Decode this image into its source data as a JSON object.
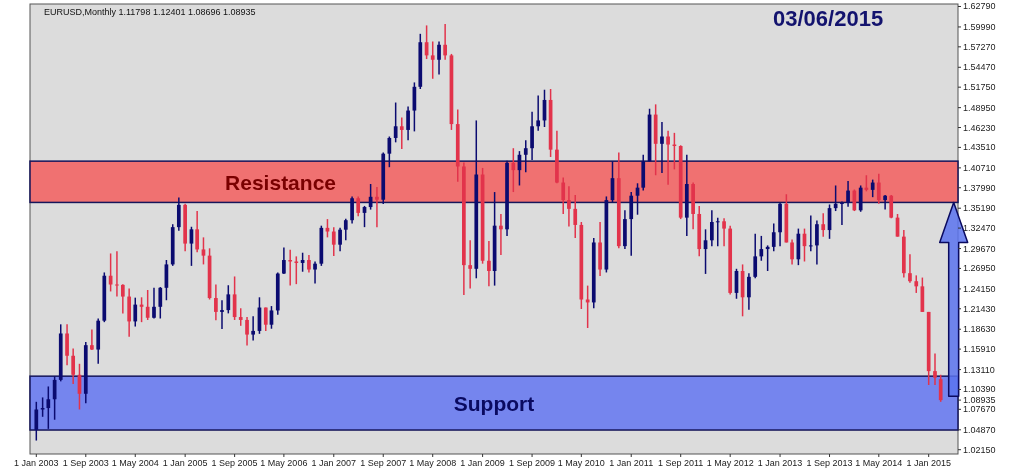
{
  "chart_data": {
    "type": "candlestick",
    "title": "EURUSD,Monthly  1.11798 1.12401 1.08696 1.08935",
    "subtitle": "03/06/2015",
    "x": [
      "2003-01",
      "2003-02",
      "2003-03",
      "2003-04",
      "2003-05",
      "2003-06",
      "2003-07",
      "2003-08",
      "2003-09",
      "2003-10",
      "2003-11",
      "2003-12",
      "2004-01",
      "2004-02",
      "2004-03",
      "2004-04",
      "2004-05",
      "2004-06",
      "2004-07",
      "2004-08",
      "2004-09",
      "2004-10",
      "2004-11",
      "2004-12",
      "2005-01",
      "2005-02",
      "2005-03",
      "2005-04",
      "2005-05",
      "2005-06",
      "2005-07",
      "2005-08",
      "2005-09",
      "2005-10",
      "2005-11",
      "2005-12",
      "2006-01",
      "2006-02",
      "2006-03",
      "2006-04",
      "2006-05",
      "2006-06",
      "2006-07",
      "2006-08",
      "2006-09",
      "2006-10",
      "2006-11",
      "2006-12",
      "2007-01",
      "2007-02",
      "2007-03",
      "2007-04",
      "2007-05",
      "2007-06",
      "2007-07",
      "2007-08",
      "2007-09",
      "2007-10",
      "2007-11",
      "2007-12",
      "2008-01",
      "2008-02",
      "2008-03",
      "2008-04",
      "2008-05",
      "2008-06",
      "2008-07",
      "2008-08",
      "2008-09",
      "2008-10",
      "2008-11",
      "2008-12",
      "2009-01",
      "2009-02",
      "2009-03",
      "2009-04",
      "2009-05",
      "2009-06",
      "2009-07",
      "2009-08",
      "2009-09",
      "2009-10",
      "2009-11",
      "2009-12",
      "2010-01",
      "2010-02",
      "2010-03",
      "2010-04",
      "2010-05",
      "2010-06",
      "2010-07",
      "2010-08",
      "2010-09",
      "2010-10",
      "2010-11",
      "2010-12",
      "2011-01",
      "2011-02",
      "2011-03",
      "2011-04",
      "2011-05",
      "2011-06",
      "2011-07",
      "2011-08",
      "2011-09",
      "2011-10",
      "2011-11",
      "2011-12",
      "2012-01",
      "2012-02",
      "2012-03",
      "2012-04",
      "2012-05",
      "2012-06",
      "2012-07",
      "2012-08",
      "2012-09",
      "2012-10",
      "2012-11",
      "2012-12",
      "2013-01",
      "2013-02",
      "2013-03",
      "2013-04",
      "2013-05",
      "2013-06",
      "2013-07",
      "2013-08",
      "2013-09",
      "2013-10",
      "2013-11",
      "2013-12",
      "2014-01",
      "2014-02",
      "2014-03",
      "2014-04",
      "2014-05",
      "2014-06",
      "2014-07",
      "2014-08",
      "2014-09",
      "2014-10",
      "2014-11",
      "2014-12",
      "2015-01",
      "2015-02",
      "2015-03"
    ],
    "ohlc": [
      [
        1.0487,
        1.087,
        1.034,
        1.0765
      ],
      [
        1.0765,
        1.093,
        1.0665,
        1.0785
      ],
      [
        1.0785,
        1.108,
        1.05,
        1.0905
      ],
      [
        1.0905,
        1.122,
        1.0625,
        1.117
      ],
      [
        1.117,
        1.193,
        1.115,
        1.1805
      ],
      [
        1.1805,
        1.193,
        1.137,
        1.15
      ],
      [
        1.15,
        1.16,
        1.1115,
        1.124
      ],
      [
        1.124,
        1.139,
        1.0765,
        1.098
      ],
      [
        1.098,
        1.169,
        1.085,
        1.1645
      ],
      [
        1.1645,
        1.186,
        1.158,
        1.1585
      ],
      [
        1.1585,
        1.201,
        1.139,
        1.198
      ],
      [
        1.198,
        1.264,
        1.196,
        1.2595
      ],
      [
        1.2595,
        1.29,
        1.238,
        1.2475
      ],
      [
        1.2475,
        1.293,
        1.231,
        1.247
      ],
      [
        1.247,
        1.248,
        1.208,
        1.231
      ],
      [
        1.231,
        1.242,
        1.176,
        1.197
      ],
      [
        1.197,
        1.2295,
        1.19,
        1.22
      ],
      [
        1.22,
        1.23,
        1.196,
        1.217
      ],
      [
        1.217,
        1.24,
        1.199,
        1.202
      ],
      [
        1.202,
        1.243,
        1.201,
        1.217
      ],
      [
        1.217,
        1.244,
        1.201,
        1.243
      ],
      [
        1.243,
        1.281,
        1.226,
        1.275
      ],
      [
        1.275,
        1.33,
        1.273,
        1.326
      ],
      [
        1.326,
        1.3665,
        1.321,
        1.3565
      ],
      [
        1.3565,
        1.358,
        1.293,
        1.3035
      ],
      [
        1.3035,
        1.3265,
        1.273,
        1.323
      ],
      [
        1.323,
        1.348,
        1.2915,
        1.2955
      ],
      [
        1.2955,
        1.312,
        1.275,
        1.287
      ],
      [
        1.287,
        1.297,
        1.227,
        1.229
      ],
      [
        1.229,
        1.2475,
        1.1985,
        1.21
      ],
      [
        1.21,
        1.226,
        1.1865,
        1.2125
      ],
      [
        1.2125,
        1.2465,
        1.208,
        1.234
      ],
      [
        1.234,
        1.2585,
        1.199,
        1.203
      ],
      [
        1.203,
        1.215,
        1.191,
        1.199
      ],
      [
        1.199,
        1.203,
        1.164,
        1.179
      ],
      [
        1.179,
        1.204,
        1.171,
        1.184
      ],
      [
        1.184,
        1.23,
        1.18,
        1.216
      ],
      [
        1.216,
        1.216,
        1.184,
        1.1925
      ],
      [
        1.1925,
        1.218,
        1.187,
        1.212
      ],
      [
        1.212,
        1.264,
        1.206,
        1.2625
      ],
      [
        1.2625,
        1.298,
        1.262,
        1.281
      ],
      [
        1.281,
        1.295,
        1.246,
        1.279
      ],
      [
        1.279,
        1.286,
        1.248,
        1.277
      ],
      [
        1.277,
        1.291,
        1.265,
        1.281
      ],
      [
        1.281,
        1.288,
        1.264,
        1.268
      ],
      [
        1.268,
        1.279,
        1.249,
        1.276
      ],
      [
        1.276,
        1.328,
        1.273,
        1.325
      ],
      [
        1.325,
        1.337,
        1.312,
        1.32
      ],
      [
        1.32,
        1.326,
        1.2865,
        1.302
      ],
      [
        1.302,
        1.325,
        1.293,
        1.3225
      ],
      [
        1.3225,
        1.3375,
        1.308,
        1.3355
      ],
      [
        1.3355,
        1.368,
        1.331,
        1.3655
      ],
      [
        1.3655,
        1.368,
        1.341,
        1.3455
      ],
      [
        1.3455,
        1.355,
        1.326,
        1.3535
      ],
      [
        1.3535,
        1.385,
        1.35,
        1.3675
      ],
      [
        1.3675,
        1.381,
        1.326,
        1.3635
      ],
      [
        1.3635,
        1.428,
        1.3575,
        1.4265
      ],
      [
        1.4265,
        1.45,
        1.408,
        1.448
      ],
      [
        1.448,
        1.4965,
        1.442,
        1.464
      ],
      [
        1.464,
        1.476,
        1.433,
        1.459
      ],
      [
        1.459,
        1.491,
        1.445,
        1.4855
      ],
      [
        1.4855,
        1.524,
        1.457,
        1.518
      ],
      [
        1.518,
        1.5905,
        1.515,
        1.579
      ],
      [
        1.579,
        1.602,
        1.556,
        1.561
      ],
      [
        1.561,
        1.58,
        1.529,
        1.555
      ],
      [
        1.555,
        1.58,
        1.535,
        1.5755
      ],
      [
        1.5755,
        1.604,
        1.555,
        1.561
      ],
      [
        1.561,
        1.563,
        1.459,
        1.467
      ],
      [
        1.467,
        1.487,
        1.388,
        1.409
      ],
      [
        1.409,
        1.4145,
        1.233,
        1.274
      ],
      [
        1.274,
        1.308,
        1.242,
        1.269
      ],
      [
        1.269,
        1.472,
        1.256,
        1.398
      ],
      [
        1.398,
        1.407,
        1.276,
        1.28
      ],
      [
        1.28,
        1.307,
        1.245,
        1.266
      ],
      [
        1.266,
        1.374,
        1.246,
        1.328
      ],
      [
        1.328,
        1.344,
        1.288,
        1.323
      ],
      [
        1.323,
        1.417,
        1.314,
        1.414
      ],
      [
        1.414,
        1.434,
        1.374,
        1.404
      ],
      [
        1.404,
        1.43,
        1.383,
        1.425
      ],
      [
        1.425,
        1.445,
        1.401,
        1.434
      ],
      [
        1.434,
        1.484,
        1.418,
        1.464
      ],
      [
        1.464,
        1.506,
        1.458,
        1.472
      ],
      [
        1.472,
        1.514,
        1.463,
        1.5
      ],
      [
        1.5,
        1.515,
        1.422,
        1.432
      ],
      [
        1.432,
        1.458,
        1.386,
        1.387
      ],
      [
        1.387,
        1.394,
        1.344,
        1.363
      ],
      [
        1.363,
        1.382,
        1.327,
        1.351
      ],
      [
        1.351,
        1.37,
        1.311,
        1.329
      ],
      [
        1.329,
        1.333,
        1.214,
        1.227
      ],
      [
        1.227,
        1.246,
        1.188,
        1.223
      ],
      [
        1.223,
        1.311,
        1.215,
        1.305
      ],
      [
        1.305,
        1.333,
        1.259,
        1.268
      ],
      [
        1.268,
        1.368,
        1.264,
        1.363
      ],
      [
        1.363,
        1.416,
        1.36,
        1.393
      ],
      [
        1.393,
        1.428,
        1.297,
        1.3
      ],
      [
        1.3,
        1.349,
        1.296,
        1.337
      ],
      [
        1.337,
        1.374,
        1.287,
        1.369
      ],
      [
        1.369,
        1.386,
        1.343,
        1.38
      ],
      [
        1.38,
        1.425,
        1.376,
        1.416
      ],
      [
        1.416,
        1.488,
        1.416,
        1.48
      ],
      [
        1.48,
        1.494,
        1.397,
        1.44
      ],
      [
        1.44,
        1.47,
        1.4,
        1.45
      ],
      [
        1.45,
        1.458,
        1.384,
        1.439
      ],
      [
        1.439,
        1.455,
        1.405,
        1.437
      ],
      [
        1.437,
        1.438,
        1.337,
        1.339
      ],
      [
        1.339,
        1.425,
        1.314,
        1.385
      ],
      [
        1.385,
        1.387,
        1.323,
        1.344
      ],
      [
        1.344,
        1.355,
        1.286,
        1.296
      ],
      [
        1.296,
        1.323,
        1.262,
        1.308
      ],
      [
        1.308,
        1.349,
        1.3,
        1.333
      ],
      [
        1.333,
        1.339,
        1.3,
        1.334
      ],
      [
        1.334,
        1.338,
        1.3,
        1.324
      ],
      [
        1.324,
        1.328,
        1.234,
        1.236
      ],
      [
        1.236,
        1.269,
        1.228,
        1.266
      ],
      [
        1.266,
        1.275,
        1.204,
        1.23
      ],
      [
        1.23,
        1.263,
        1.213,
        1.258
      ],
      [
        1.258,
        1.317,
        1.256,
        1.286
      ],
      [
        1.286,
        1.314,
        1.28,
        1.296
      ],
      [
        1.296,
        1.301,
        1.266,
        1.299
      ],
      [
        1.299,
        1.331,
        1.293,
        1.319
      ],
      [
        1.319,
        1.359,
        1.3,
        1.358
      ],
      [
        1.358,
        1.371,
        1.305,
        1.305
      ],
      [
        1.305,
        1.309,
        1.275,
        1.282
      ],
      [
        1.282,
        1.324,
        1.274,
        1.317
      ],
      [
        1.317,
        1.324,
        1.279,
        1.3
      ],
      [
        1.3,
        1.342,
        1.293,
        1.301
      ],
      [
        1.301,
        1.335,
        1.275,
        1.33
      ],
      [
        1.33,
        1.345,
        1.313,
        1.322
      ],
      [
        1.322,
        1.357,
        1.31,
        1.352
      ],
      [
        1.352,
        1.383,
        1.348,
        1.358
      ],
      [
        1.358,
        1.361,
        1.329,
        1.359
      ],
      [
        1.359,
        1.389,
        1.354,
        1.376
      ],
      [
        1.376,
        1.3775,
        1.348,
        1.349
      ],
      [
        1.349,
        1.383,
        1.347,
        1.38
      ],
      [
        1.38,
        1.397,
        1.375,
        1.377
      ],
      [
        1.377,
        1.391,
        1.367,
        1.387
      ],
      [
        1.387,
        1.399,
        1.358,
        1.363
      ],
      [
        1.363,
        1.37,
        1.35,
        1.369
      ],
      [
        1.369,
        1.37,
        1.338,
        1.339
      ],
      [
        1.339,
        1.344,
        1.313,
        1.313
      ],
      [
        1.313,
        1.322,
        1.257,
        1.263
      ],
      [
        1.263,
        1.289,
        1.25,
        1.252
      ],
      [
        1.252,
        1.26,
        1.236,
        1.245
      ],
      [
        1.245,
        1.257,
        1.21,
        1.21
      ],
      [
        1.21,
        1.21,
        1.11,
        1.129
      ],
      [
        1.129,
        1.153,
        1.11,
        1.12
      ],
      [
        1.11798,
        1.12401,
        1.08696,
        1.08935
      ]
    ],
    "colors": [
      "#0b0b70",
      "#0b0b70",
      "#0b0b70",
      "#0b0b70",
      "#0b0b70",
      "#e2334b",
      "#e2334b",
      "#e2334b",
      "#0b0b70",
      "#e2334b",
      "#0b0b70",
      "#0b0b70",
      "#e2334b",
      "#e2334b",
      "#e2334b",
      "#e2334b",
      "#0b0b70",
      "#e2334b",
      "#e2334b",
      "#0b0b70",
      "#0b0b70",
      "#0b0b70",
      "#0b0b70",
      "#0b0b70",
      "#e2334b",
      "#0b0b70",
      "#e2334b",
      "#e2334b",
      "#e2334b",
      "#e2334b",
      "#0b0b70",
      "#0b0b70",
      "#e2334b",
      "#e2334b",
      "#e2334b",
      "#0b0b70",
      "#0b0b70",
      "#e2334b",
      "#0b0b70",
      "#0b0b70",
      "#0b0b70",
      "#e2334b",
      "#e2334b",
      "#0b0b70",
      "#e2334b",
      "#0b0b70",
      "#0b0b70",
      "#e2334b",
      "#e2334b",
      "#0b0b70",
      "#0b0b70",
      "#0b0b70",
      "#e2334b",
      "#0b0b70",
      "#0b0b70",
      "#e2334b",
      "#0b0b70",
      "#0b0b70",
      "#0b0b70",
      "#e2334b",
      "#0b0b70",
      "#0b0b70",
      "#0b0b70",
      "#e2334b",
      "#e2334b",
      "#0b0b70",
      "#e2334b",
      "#e2334b",
      "#e2334b",
      "#e2334b",
      "#e2334b",
      "#0b0b70",
      "#e2334b",
      "#e2334b",
      "#0b0b70",
      "#e2334b",
      "#0b0b70",
      "#e2334b",
      "#0b0b70",
      "#0b0b70",
      "#0b0b70",
      "#0b0b70",
      "#0b0b70",
      "#e2334b",
      "#e2334b",
      "#e2334b",
      "#e2334b",
      "#e2334b",
      "#e2334b",
      "#e2334b",
      "#0b0b70",
      "#e2334b",
      "#0b0b70",
      "#0b0b70",
      "#e2334b",
      "#0b0b70",
      "#0b0b70",
      "#0b0b70",
      "#0b0b70",
      "#0b0b70",
      "#e2334b",
      "#0b0b70",
      "#e2334b",
      "#e2334b",
      "#e2334b",
      "#0b0b70",
      "#e2334b",
      "#e2334b",
      "#0b0b70",
      "#0b0b70",
      "#0b0b70",
      "#e2334b",
      "#e2334b",
      "#0b0b70",
      "#e2334b",
      "#0b0b70",
      "#0b0b70",
      "#0b0b70",
      "#0b0b70",
      "#0b0b70",
      "#0b0b70",
      "#e2334b",
      "#e2334b",
      "#0b0b70",
      "#e2334b",
      "#0b0b70",
      "#0b0b70",
      "#e2334b",
      "#0b0b70",
      "#0b0b70",
      "#0b0b70",
      "#0b0b70",
      "#e2334b",
      "#0b0b70",
      "#e2334b",
      "#0b0b70",
      "#e2334b",
      "#0b0b70",
      "#e2334b",
      "#e2334b",
      "#e2334b",
      "#e2334b",
      "#e2334b",
      "#e2334b",
      "#e2334b",
      "#e2334b",
      "#e2334b"
    ],
    "xlim": [
      "2002-12-01",
      "2015-05-25"
    ],
    "xticks": [
      {
        "value": "2003-01",
        "label": "1 Jan 2003"
      },
      {
        "value": "2003-09",
        "label": "1 Sep 2003"
      },
      {
        "value": "2004-05",
        "label": "1 May 2004"
      },
      {
        "value": "2005-01",
        "label": "1 Jan 2005"
      },
      {
        "value": "2005-09",
        "label": "1 Sep 2005"
      },
      {
        "value": "2006-05",
        "label": "1 May 2006"
      },
      {
        "value": "2007-01",
        "label": "1 Jan 2007"
      },
      {
        "value": "2007-09",
        "label": "1 Sep 2007"
      },
      {
        "value": "2008-05",
        "label": "1 May 2008"
      },
      {
        "value": "2009-01",
        "label": "1 Jan 2009"
      },
      {
        "value": "2009-09",
        "label": "1 Sep 2009"
      },
      {
        "value": "2010-05",
        "label": "1 May 2010"
      },
      {
        "value": "2011-01",
        "label": "1 Jan 2011"
      },
      {
        "value": "2011-09",
        "label": "1 Sep 2011"
      },
      {
        "value": "2012-05",
        "label": "1 May 2012"
      },
      {
        "value": "2013-01",
        "label": "1 Jan 2013"
      },
      {
        "value": "2013-09",
        "label": "1 Sep 2013"
      },
      {
        "value": "2014-05",
        "label": "1 May 2014"
      },
      {
        "value": "2015-01",
        "label": "1 Jan 2015"
      }
    ],
    "ylim": [
      1.0156,
      1.6313
    ],
    "yticks": [
      {
        "value": 1.0215,
        "label": "1.02150"
      },
      {
        "value": 1.0487,
        "label": "1.04870"
      },
      {
        "value": 1.0767,
        "label": "1.07670"
      },
      {
        "value": 1.08935,
        "label": "1.08935"
      },
      {
        "value": 1.1039,
        "label": "1.10390"
      },
      {
        "value": 1.1311,
        "label": "1.13110"
      },
      {
        "value": 1.1591,
        "label": "1.15910"
      },
      {
        "value": 1.1863,
        "label": "1.18630"
      },
      {
        "value": 1.2143,
        "label": "1.21430"
      },
      {
        "value": 1.2415,
        "label": "1.24150"
      },
      {
        "value": 1.2695,
        "label": "1.26950"
      },
      {
        "value": 1.2967,
        "label": "1.29670"
      },
      {
        "value": 1.3247,
        "label": "1.32470"
      },
      {
        "value": 1.3519,
        "label": "1.35190"
      },
      {
        "value": 1.3799,
        "label": "1.37990"
      },
      {
        "value": 1.4071,
        "label": "1.40710"
      },
      {
        "value": 1.4351,
        "label": "1.43510"
      },
      {
        "value": 1.4623,
        "label": "1.46230"
      },
      {
        "value": 1.4895,
        "label": "1.48950"
      },
      {
        "value": 1.5175,
        "label": "1.51750"
      },
      {
        "value": 1.5447,
        "label": "1.54470"
      },
      {
        "value": 1.5727,
        "label": "1.57270"
      },
      {
        "value": 1.5999,
        "label": "1.59990"
      },
      {
        "value": 1.6279,
        "label": "1.62790"
      }
    ],
    "bands": [
      {
        "axis": "y",
        "from": 1.3598,
        "to": 1.4163,
        "label": "Resistance",
        "color": "#f06a6a"
      },
      {
        "axis": "y",
        "from": 1.0484,
        "to": 1.1221,
        "label": "Support",
        "color": "#6f80ee"
      }
    ]
  }
}
